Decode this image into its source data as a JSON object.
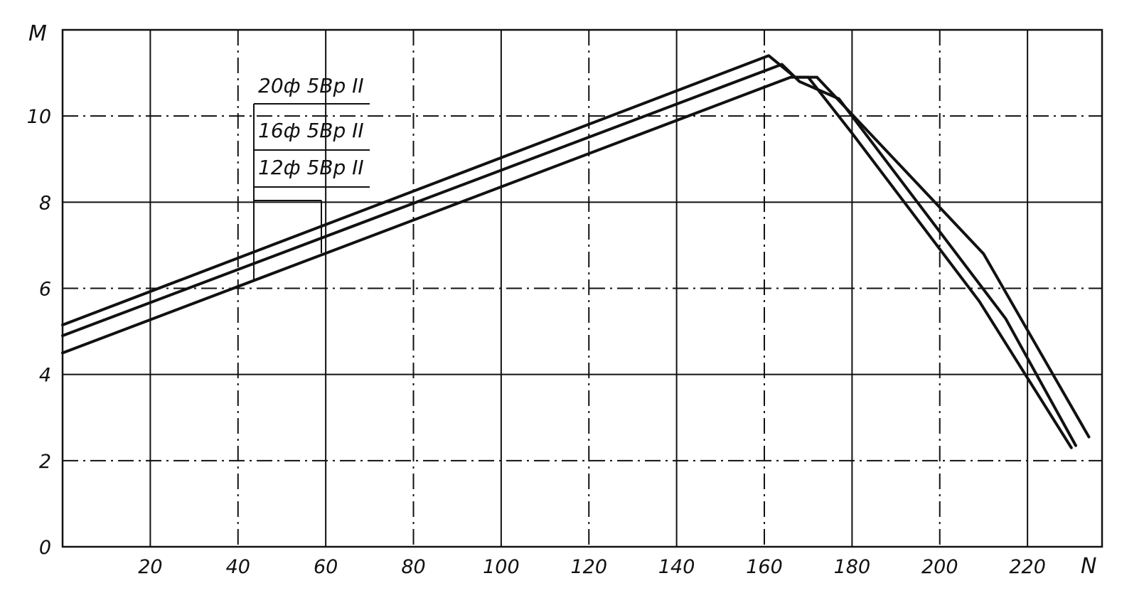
{
  "chart_data": {
    "type": "line",
    "title": "",
    "xlabel": "N",
    "ylabel": "M",
    "xlim": [
      0,
      237
    ],
    "ylim": [
      0,
      12
    ],
    "grid": true,
    "x_ticks": [
      20,
      40,
      60,
      80,
      100,
      120,
      140,
      160,
      180,
      200,
      220
    ],
    "x_tick_labels": [
      "20",
      "40",
      "60",
      "80",
      "100",
      "120",
      "140",
      "160",
      "180",
      "200",
      "220"
    ],
    "y_ticks": [
      0,
      2,
      4,
      6,
      8,
      10
    ],
    "y_tick_labels": [
      "0",
      "2",
      "4",
      "6",
      "8",
      "10"
    ],
    "legend": [
      "20ф 5Вр II",
      "16ф 5Вр II",
      "12ф 5Вр II"
    ],
    "series": [
      {
        "name": "20ф 5Вр II",
        "x": [
          0,
          161,
          167,
          172,
          210,
          234
        ],
        "y": [
          5.15,
          11.4,
          10.9,
          10.9,
          6.8,
          2.55
        ]
      },
      {
        "name": "16ф 5Вр II",
        "x": [
          0,
          164,
          168,
          177,
          215,
          231
        ],
        "y": [
          4.9,
          11.2,
          10.8,
          10.4,
          5.3,
          2.35
        ]
      },
      {
        "name": "12ф 5Вр II",
        "x": [
          0,
          166,
          170,
          180,
          209,
          230
        ],
        "y": [
          4.5,
          10.9,
          10.9,
          9.6,
          5.7,
          2.3
        ]
      }
    ]
  }
}
